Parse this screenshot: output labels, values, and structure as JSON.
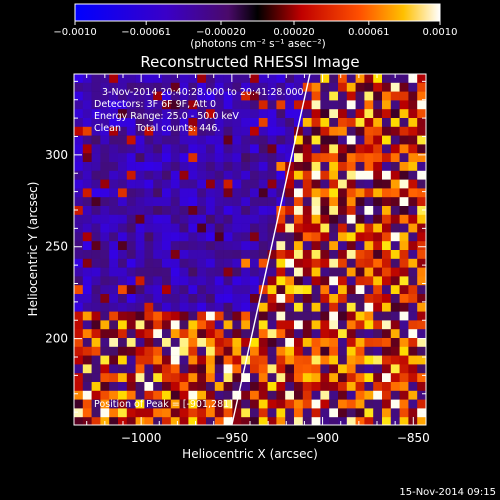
{
  "chart_data": {
    "type": "heatmap",
    "title": "Reconstructed RHESSI Image",
    "xlabel": "Heliocentric X (arcsec)",
    "ylabel": "Heliocentric Y (arcsec)",
    "xlim": [
      -1037,
      -843
    ],
    "ylim": [
      153,
      344
    ],
    "xticks": [
      -1000,
      -950,
      -900,
      -850
    ],
    "xtick_labels": [
      "−1000",
      "−950",
      "−900",
      "−850"
    ],
    "yticks": [
      200,
      250,
      300
    ],
    "ytick_labels": [
      "200",
      "250",
      "300"
    ],
    "colorbar": {
      "range": [
        -0.001,
        0.001
      ],
      "ticks": [
        -0.001,
        -0.00061,
        -0.0002,
        0.0002,
        0.00061,
        0.001
      ],
      "tick_labels": [
        "−0.0010",
        "−0.00061",
        "−0.00020",
        "0.00020",
        "0.00061",
        "0.0010"
      ],
      "unit_label": "(photons cm⁻² s⁻¹ asec⁻²)",
      "colormap": "blue-purple-red-orange-yellow-white"
    },
    "grid": false,
    "limb_line": {
      "x": [
        -950,
        -907
      ],
      "y": [
        153,
        344
      ],
      "color": "#ffffff"
    },
    "annotations": [
      "3-Nov-2014 20:40:28.000 to 20:41:28.000",
      "Detectors: 3F 6F 9F, Att 0",
      "Energy Range: 25.0 - 50.0 keV",
      "Clean     Total counts: 446.",
      "Position of Peak = [-901,281]"
    ],
    "peak": {
      "x": -901,
      "y": 281
    }
  },
  "footer_timestamp": "15-Nov-2014 09:15"
}
